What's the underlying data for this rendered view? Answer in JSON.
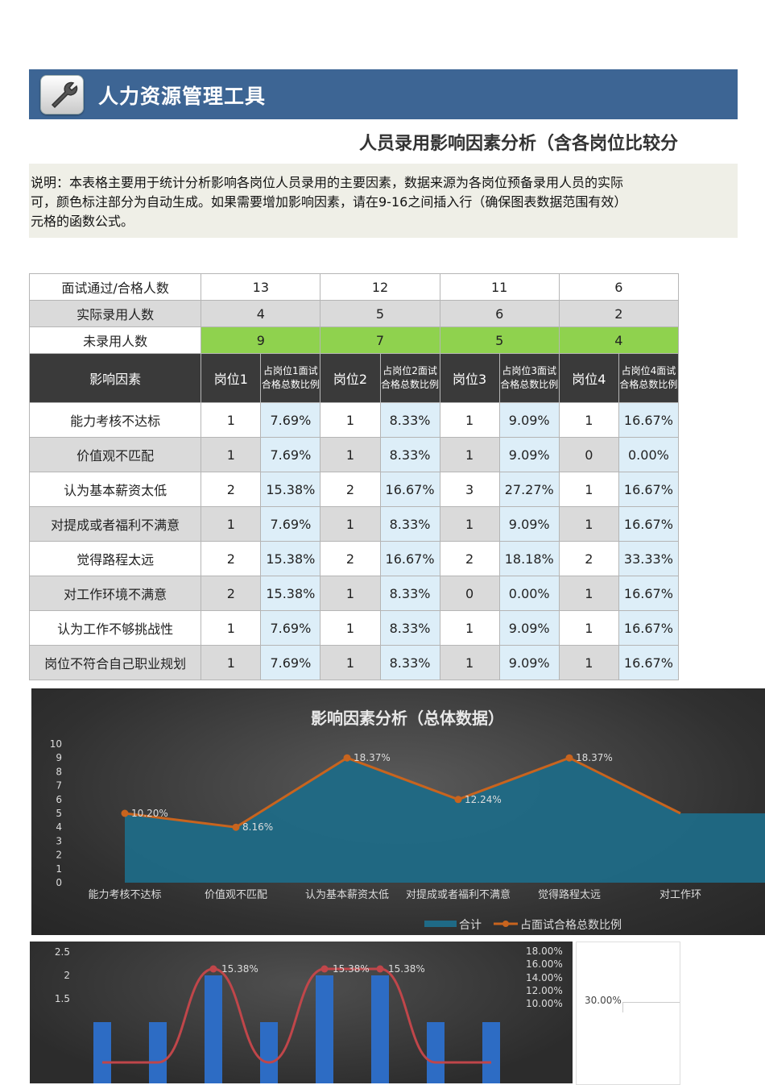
{
  "header": {
    "title": "人力资源管理工具"
  },
  "subtitle": "人员录用影响因素分析（含各岗位比较分",
  "note": {
    "line1": "说明：本表格主要用于统计分析影响各岗位人员录用的主要因素，数据来源为各岗位预备录用人员的实际",
    "line2": "可，颜色标注部分为自动生成。如果需要增加影响因素，请在9-16之间插入行（确保图表数据范围有效）",
    "line3": "元格的函数公式。"
  },
  "summary": [
    {
      "label": "面试通过/合格人数",
      "values": [
        "13",
        "12",
        "11",
        "6"
      ]
    },
    {
      "label": "实际录用人数",
      "values": [
        "4",
        "5",
        "6",
        "2"
      ]
    },
    {
      "label": "未录用人数",
      "values": [
        "9",
        "7",
        "5",
        "4"
      ]
    }
  ],
  "header_row": {
    "factor": "影响因素",
    "pos1": "岗位1",
    "pct1": "占岗位1面试合格总数比例",
    "pos2": "岗位2",
    "pct2": "占岗位2面试合格总数比例",
    "pos3": "岗位3",
    "pct3": "占岗位3面试合格总数比例",
    "pos4": "岗位4",
    "pct4": "占岗位4面试合格总数比例"
  },
  "rows": [
    {
      "factor": "能力考核不达标",
      "cells": [
        "1",
        "7.69%",
        "1",
        "8.33%",
        "1",
        "9.09%",
        "1",
        "16.67%"
      ]
    },
    {
      "factor": "价值观不匹配",
      "cells": [
        "1",
        "7.69%",
        "1",
        "8.33%",
        "1",
        "9.09%",
        "0",
        "0.00%"
      ]
    },
    {
      "factor": "认为基本薪资太低",
      "cells": [
        "2",
        "15.38%",
        "2",
        "16.67%",
        "3",
        "27.27%",
        "1",
        "16.67%"
      ]
    },
    {
      "factor": "对提成或者福利不满意",
      "cells": [
        "1",
        "7.69%",
        "1",
        "8.33%",
        "1",
        "9.09%",
        "1",
        "16.67%"
      ]
    },
    {
      "factor": "觉得路程太远",
      "cells": [
        "2",
        "15.38%",
        "2",
        "16.67%",
        "2",
        "18.18%",
        "2",
        "33.33%"
      ]
    },
    {
      "factor": "对工作环境不满意",
      "cells": [
        "2",
        "15.38%",
        "1",
        "8.33%",
        "0",
        "0.00%",
        "1",
        "16.67%"
      ]
    },
    {
      "factor": "认为工作不够挑战性",
      "cells": [
        "1",
        "7.69%",
        "1",
        "8.33%",
        "1",
        "9.09%",
        "1",
        "16.67%"
      ]
    },
    {
      "factor": "岗位不符合自己职业规划",
      "cells": [
        "1",
        "7.69%",
        "1",
        "8.33%",
        "1",
        "9.09%",
        "1",
        "16.67%"
      ]
    }
  ],
  "colors": {
    "banner": "#3d6594",
    "green": "#8fd24e",
    "header_dark": "#3a3a3a",
    "pct_cell": "#ddeef8",
    "area": "#1f6a86",
    "line": "#c8641e"
  },
  "chart_data": [
    {
      "type": "area",
      "title": "影响因素分析（总体数据）",
      "categories": [
        "能力考核不达标",
        "价值观不匹配",
        "认为基本薪资太低",
        "对提成或者福利不满意",
        "觉得路程太远",
        "对工作环"
      ],
      "yticks": [
        "0",
        "1",
        "2",
        "3",
        "4",
        "5",
        "6",
        "7",
        "8",
        "9",
        "10"
      ],
      "ylim": [
        0,
        10
      ],
      "series": [
        {
          "name": "合计",
          "values": [
            5,
            4,
            9,
            6,
            9,
            5
          ]
        },
        {
          "name": "占面试合格总数比例",
          "values": [
            5,
            4,
            9,
            6,
            9,
            5
          ],
          "labels": [
            "10.20%",
            "8.16%",
            "18.37%",
            "12.24%",
            "18.37%",
            ""
          ]
        }
      ],
      "legend": "bottom"
    },
    {
      "type": "bar",
      "yticks_left": [
        "2.5",
        "2",
        "1.5"
      ],
      "yticks_right": [
        "18.00%",
        "16.00%",
        "14.00%",
        "12.00%",
        "10.00%"
      ],
      "ylim_left": [
        1,
        2.5
      ],
      "ylim_right": [
        6,
        18
      ],
      "series": [
        {
          "values": [
            1,
            1,
            2,
            1,
            2,
            2,
            1,
            1
          ]
        },
        {
          "values": [
            7.69,
            7.69,
            15.38,
            7.69,
            15.38,
            15.38,
            7.69,
            7.69
          ],
          "labels": [
            "",
            "",
            "15.38%",
            "",
            "15.38%",
            "15.38%",
            "",
            ""
          ]
        }
      ]
    },
    {
      "type": "line",
      "yticks": [
        "30.00%"
      ]
    }
  ]
}
